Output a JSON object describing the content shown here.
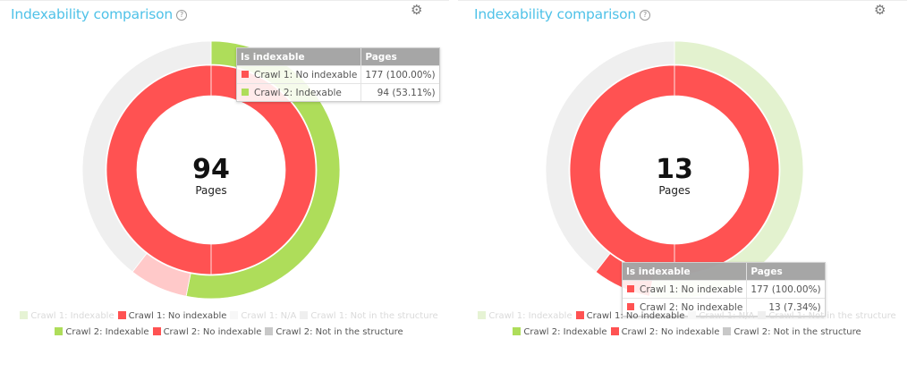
{
  "colors": {
    "title": "#4fc2e8",
    "indexable": "#aedd5a",
    "indexable_faded": "#e3f2cf",
    "no_indexable": "#ff5252",
    "no_indexable_faded": "#ffc9c9",
    "na": "#f4f4f4",
    "not_in_structure": "#efefef"
  },
  "chart_data": [
    {
      "type": "pie",
      "title": "Indexability comparison",
      "center_value": "94",
      "center_label": "Pages",
      "series": [
        {
          "name": "Crawl 1",
          "ring": "inner",
          "slices": [
            {
              "label": "Crawl 1: No indexable",
              "value": 177,
              "percent": 100.0,
              "color": "#ff5252"
            }
          ]
        },
        {
          "name": "Crawl 2",
          "ring": "outer",
          "slices": [
            {
              "label": "Crawl 2: Indexable",
              "value": 94,
              "percent": 53.11,
              "color": "#aedd5a"
            },
            {
              "label": "Crawl 2: No indexable",
              "value": 13,
              "percent": 7.34,
              "color": "#ffc9c9"
            },
            {
              "label": "Crawl 2: Not in the structure",
              "value": 70,
              "percent": 39.55,
              "color": "#efefef"
            }
          ]
        }
      ],
      "tooltip": {
        "headers": [
          "Is indexable",
          "Pages"
        ],
        "rows": [
          {
            "label": "Crawl 1: No indexable",
            "value": "177 (100.00%)",
            "color": "#ff5252"
          },
          {
            "label": "Crawl 2: Indexable",
            "value": "94 (53.11%)",
            "color": "#aedd5a"
          }
        ]
      },
      "legend_row1": [
        {
          "label": "Crawl 1: Indexable",
          "color": "#e6f3d4",
          "active": false
        },
        {
          "label": "Crawl 1: No indexable",
          "color": "#ff5252",
          "active": true
        },
        {
          "label": "Crawl 1: N/A",
          "color": "#f7f7f7",
          "active": false
        },
        {
          "label": "Crawl 1: Not in the structure",
          "color": "#efefef",
          "active": false
        }
      ],
      "legend_row2": [
        {
          "label": "Crawl 2: Indexable",
          "color": "#aedd5a",
          "active": true
        },
        {
          "label": "Crawl 2: No indexable",
          "color": "#ff5252",
          "active": true
        },
        {
          "label": "Crawl 2: Not in the structure",
          "color": "#c8c8c8",
          "active": true
        }
      ]
    },
    {
      "type": "pie",
      "title": "Indexability comparison",
      "center_value": "13",
      "center_label": "Pages",
      "series": [
        {
          "name": "Crawl 1",
          "ring": "inner",
          "slices": [
            {
              "label": "Crawl 1: No indexable",
              "value": 177,
              "percent": 100.0,
              "color": "#ff5252"
            }
          ]
        },
        {
          "name": "Crawl 2",
          "ring": "outer",
          "slices": [
            {
              "label": "Crawl 2: Indexable",
              "value": 94,
              "percent": 53.11,
              "color": "#e3f2cf"
            },
            {
              "label": "Crawl 2: No indexable",
              "value": 13,
              "percent": 7.34,
              "color": "#ff5252"
            },
            {
              "label": "Crawl 2: Not in the structure",
              "value": 70,
              "percent": 39.55,
              "color": "#efefef"
            }
          ]
        }
      ],
      "tooltip": {
        "headers": [
          "Is indexable",
          "Pages"
        ],
        "rows": [
          {
            "label": "Crawl 1: No indexable",
            "value": "177 (100.00%)",
            "color": "#ff5252"
          },
          {
            "label": "Crawl 2: No indexable",
            "value": "13 (7.34%)",
            "color": "#ff5252"
          }
        ]
      },
      "legend_row1": [
        {
          "label": "Crawl 1: Indexable",
          "color": "#e6f3d4",
          "active": false
        },
        {
          "label": "Crawl 1: No indexable",
          "color": "#ff5252",
          "active": true
        },
        {
          "label": "Crawl 1: N/A",
          "color": "#f7f7f7",
          "active": false
        },
        {
          "label": "Crawl 1: Not in the structure",
          "color": "#efefef",
          "active": false
        }
      ],
      "legend_row2": [
        {
          "label": "Crawl 2: Indexable",
          "color": "#aedd5a",
          "active": true
        },
        {
          "label": "Crawl 2: No indexable",
          "color": "#ff5252",
          "active": true
        },
        {
          "label": "Crawl 2: Not in the structure",
          "color": "#c8c8c8",
          "active": true
        }
      ]
    }
  ],
  "icons": {
    "help": "?",
    "settings": "⚙"
  }
}
